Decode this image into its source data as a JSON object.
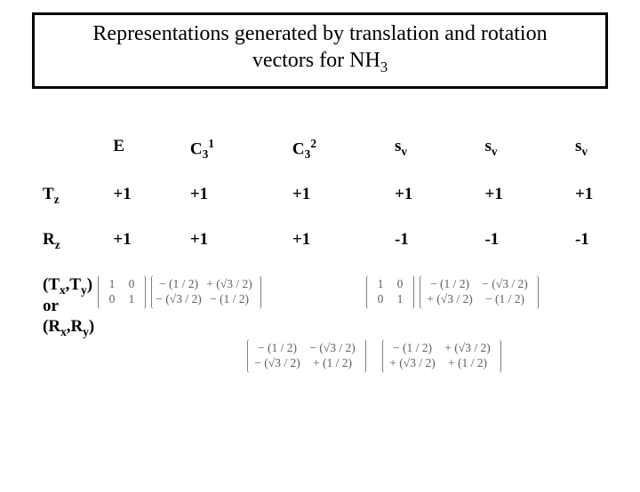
{
  "title": {
    "line1": "Representations generated by translation and rotation",
    "line2a": "vectors for NH",
    "line2sub": "3"
  },
  "columns": {
    "c0": "",
    "c1": "E",
    "c2_base": "C",
    "c2_sub": "3",
    "c2_sup": "1",
    "c3_base": "C",
    "c3_sub": "3",
    "c3_sup": "2",
    "c4_sym": "s",
    "c4_sub": "v",
    "c5_sym": "s",
    "c5_sub": "v",
    "c6_sym": "s",
    "c6_sub": "v"
  },
  "rows": {
    "r1": {
      "label_base": "T",
      "label_sub": "z",
      "v": [
        "+1",
        "+1",
        "+1",
        "+1",
        "+1",
        "+1"
      ]
    },
    "r2": {
      "label_base": "R",
      "label_sub": "z",
      "v": [
        "+1",
        "+1",
        "+1",
        "-1",
        "-1",
        "-1"
      ]
    },
    "r3": {
      "line1a": "(T",
      "line1x": "x",
      "line1b": ",T",
      "line1y": "y",
      "line1c": ")",
      "line2": "or",
      "line3a": "(R",
      "line3x": "x",
      "line3b": ",R",
      "line3y": "y",
      "line3c": ")"
    }
  },
  "mat": {
    "id": [
      [
        "1",
        "0"
      ],
      [
        "0",
        "1"
      ]
    ],
    "m_c31": [
      [
        "− (1 / 2)",
        "+ (√3 / 2)"
      ],
      [
        "− (√3 / 2)",
        "− (1 / 2)"
      ]
    ],
    "m_c32": [
      [
        "− (1 / 2)",
        "− (√3 / 2)"
      ],
      [
        "+ (√3 / 2)",
        "− (1 / 2)"
      ]
    ],
    "m_s1": [
      [
        "− (1 / 2)",
        "− (√3 / 2)"
      ],
      [
        "− (√3 / 2)",
        "+ (1 / 2)"
      ]
    ],
    "m_s2": [
      [
        "− (1 / 2)",
        "+ (√3 / 2)"
      ],
      [
        "+ (√3 / 2)",
        "+ (1 / 2)"
      ]
    ]
  }
}
